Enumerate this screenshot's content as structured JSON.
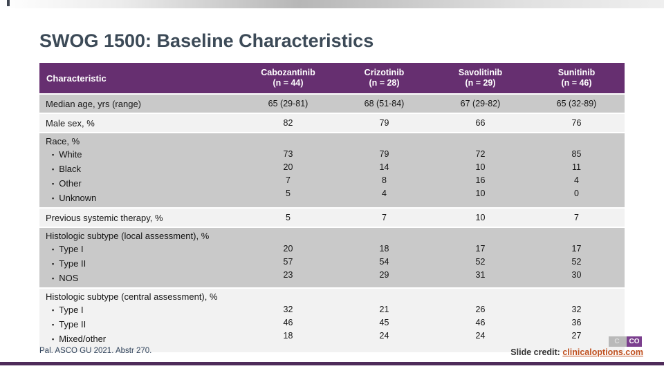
{
  "slide": {
    "title": "SWOG 1500: Baseline Characteristics",
    "citation": "Pal. ASCO GU 2021. Abstr 270.",
    "credit_label": "Slide credit: ",
    "credit_link": "clinicaloptions.com",
    "logo": {
      "left_text": "C",
      "right_text": "CO"
    }
  },
  "table": {
    "bullet": "▪",
    "header": {
      "characteristic": "Characteristic",
      "columns": [
        {
          "name": "Cabozantinib",
          "n": "(n = 44)"
        },
        {
          "name": "Crizotinib",
          "n": "(n = 28)"
        },
        {
          "name": "Savolitinib",
          "n": "(n = 29)"
        },
        {
          "name": "Sunitinib",
          "n": "(n = 46)"
        }
      ]
    },
    "rows": [
      {
        "type": "simple",
        "shade": "dark",
        "label": "Median age, yrs (range)",
        "values": [
          "65 (29-81)",
          "68 (51-84)",
          "67 (29-82)",
          "65 (32-89)"
        ]
      },
      {
        "type": "simple",
        "shade": "light",
        "label": "Male sex, %",
        "values": [
          "82",
          "79",
          "66",
          "76"
        ]
      },
      {
        "type": "group",
        "shade": "dark",
        "label": "Race, %",
        "items": [
          "White",
          "Black",
          "Other",
          "Unknown"
        ],
        "values": [
          [
            "73",
            "20",
            "7",
            "5"
          ],
          [
            "79",
            "14",
            "8",
            "4"
          ],
          [
            "72",
            "10",
            "16",
            "10"
          ],
          [
            "85",
            "11",
            "4",
            "0"
          ]
        ]
      },
      {
        "type": "simple",
        "shade": "light",
        "label": "Previous systemic therapy, %",
        "values": [
          "5",
          "7",
          "10",
          "7"
        ]
      },
      {
        "type": "group",
        "shade": "dark",
        "label": "Histologic subtype (local assessment), %",
        "items": [
          "Type I",
          "Type II",
          "NOS"
        ],
        "values": [
          [
            "20",
            "57",
            "23"
          ],
          [
            "18",
            "54",
            "29"
          ],
          [
            "17",
            "52",
            "31"
          ],
          [
            "17",
            "52",
            "30"
          ]
        ]
      },
      {
        "type": "group",
        "shade": "light",
        "label": "Histologic subtype (central assessment), %",
        "items": [
          "Type I",
          "Type II",
          "Mixed/other"
        ],
        "values": [
          [
            "32",
            "46",
            "18"
          ],
          [
            "21",
            "45",
            "24"
          ],
          [
            "26",
            "46",
            "24"
          ],
          [
            "32",
            "36",
            "27"
          ]
        ]
      }
    ]
  },
  "colors": {
    "header_purple": "#662f70",
    "row_dark": "#c9c9c9",
    "row_light": "#f2f2f2",
    "accent_line": "#4e2b5a",
    "link_orange": "#c0501f",
    "title_color": "#3c4a57",
    "logo_purple": "#7b3f8e",
    "logo_gray": "#b9b9b9"
  }
}
